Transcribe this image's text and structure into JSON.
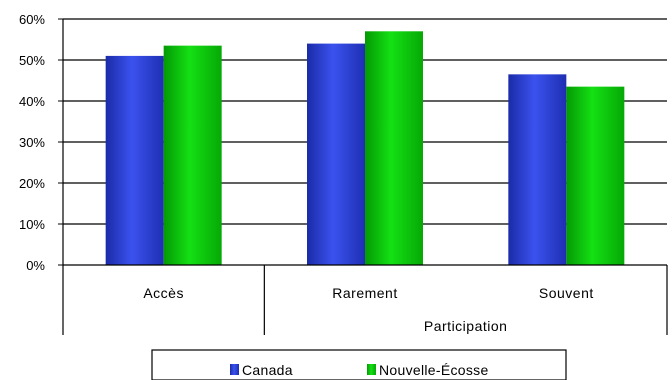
{
  "chart_data": {
    "type": "bar",
    "title": "",
    "ylabel": "",
    "ylim": [
      0,
      60
    ],
    "yticks": [
      "0%",
      "10%",
      "20%",
      "30%",
      "40%",
      "50%",
      "60%"
    ],
    "grid": true,
    "categories": [
      "Accès",
      "Rarement",
      "Souvent"
    ],
    "group_label": "Participation",
    "group_label_applies_to": [
      "Rarement",
      "Souvent"
    ],
    "series": [
      {
        "name": "Canada",
        "color": "#2E43D9",
        "values": [
          51,
          54,
          46.5
        ]
      },
      {
        "name": "Nouvelle-Écosse",
        "color": "#0AC80A",
        "values": [
          53.5,
          57,
          43.5
        ]
      }
    ],
    "legend_position": "bottom"
  }
}
